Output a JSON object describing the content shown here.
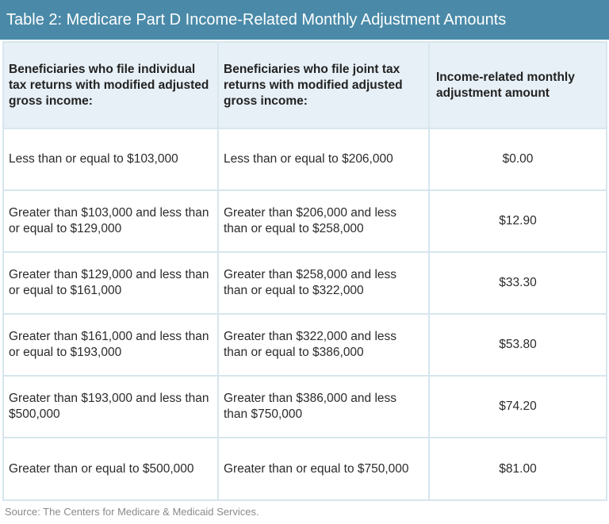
{
  "title": "Table 2: Medicare Part D Income-Related Monthly Adjustment Amounts",
  "headers": {
    "individual": "Beneficiaries who file individual tax returns with modified adjusted gross income:",
    "joint": "Beneficiaries who file joint tax returns with modified adjusted gross income:",
    "amount": "Income-related monthly adjustment amount"
  },
  "rows": [
    {
      "individual": "Less than or equal to $103,000",
      "joint": "Less than or equal to $206,000",
      "amount": "$0.00"
    },
    {
      "individual": "Greater than $103,000 and less than or equal to $129,000",
      "joint": "Greater than $206,000 and less than or equal to $258,000",
      "amount": "$12.90"
    },
    {
      "individual": "Greater than $129,000 and less than or equal to $161,000",
      "joint": "Greater than $258,000 and less than or equal to $322,000",
      "amount": "$33.30"
    },
    {
      "individual": "Greater than $161,000 and less than or equal to $193,000",
      "joint": "Greater than $322,000 and less than or equal to $386,000",
      "amount": "$53.80"
    },
    {
      "individual": "Greater than $193,000 and less than $500,000",
      "joint": "Greater than $386,000 and less than $750,000",
      "amount": "$74.20"
    },
    {
      "individual": "Greater than or equal to $500,000",
      "joint": "Greater than or equal to $750,000",
      "amount": "$81.00"
    }
  ],
  "source": "Source: The Centers for Medicare & Medicaid Services.",
  "colors": {
    "title_bar": "#4a8aa8",
    "header_bg": "#e7f0f6",
    "grid": "#d7e6ee"
  }
}
